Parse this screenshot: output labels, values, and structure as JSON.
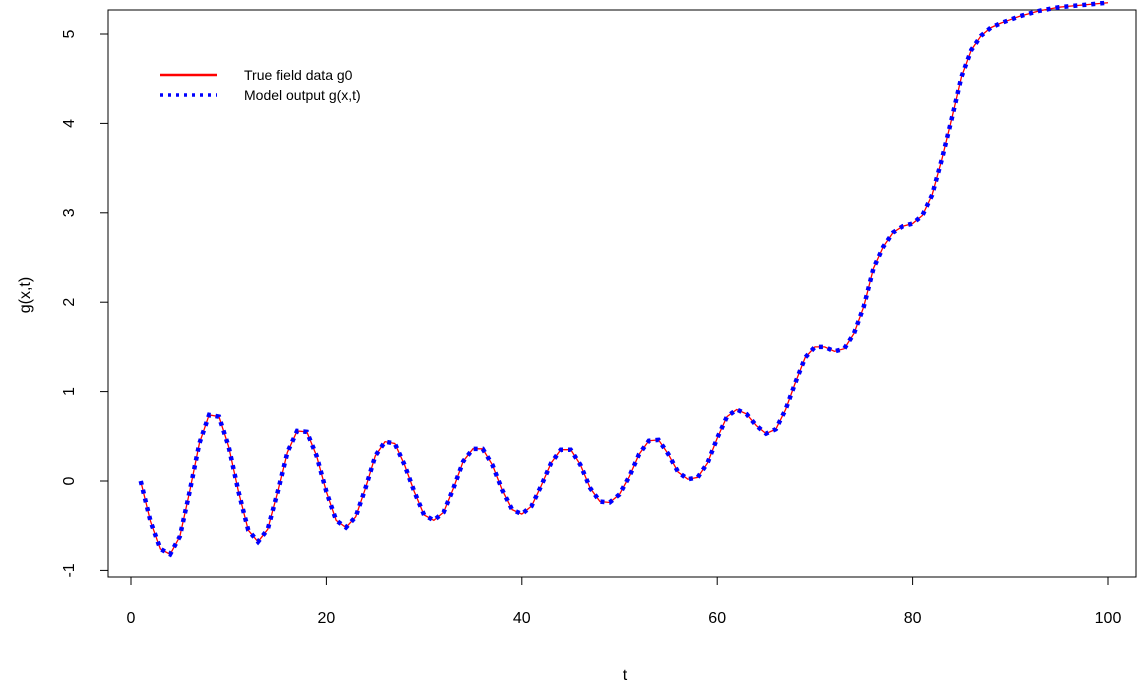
{
  "chart_data": {
    "type": "line",
    "title": "",
    "xlabel": "t",
    "ylabel": "g(x,t)",
    "xlim": [
      1,
      100
    ],
    "ylim": [
      -1,
      5
    ],
    "x_ticks": [
      0,
      20,
      40,
      60,
      80,
      100
    ],
    "y_ticks": [
      -1,
      0,
      1,
      2,
      3,
      4,
      5
    ],
    "legend_position": "top-left",
    "grid": false,
    "x": [
      1,
      2,
      3,
      4,
      5,
      6,
      7,
      8,
      9,
      10,
      11,
      12,
      13,
      14,
      15,
      16,
      17,
      18,
      19,
      20,
      21,
      22,
      23,
      24,
      25,
      26,
      27,
      28,
      29,
      30,
      31,
      32,
      33,
      34,
      35,
      36,
      37,
      38,
      39,
      40,
      41,
      42,
      43,
      44,
      45,
      46,
      47,
      48,
      49,
      50,
      51,
      52,
      53,
      54,
      55,
      56,
      57,
      58,
      59,
      60,
      61,
      62,
      63,
      64,
      65,
      66,
      67,
      68,
      69,
      70,
      71,
      72,
      73,
      74,
      75,
      76,
      77,
      78,
      79,
      80,
      81,
      82,
      83,
      84,
      85,
      86,
      87,
      88,
      89,
      90,
      91,
      92,
      93,
      94,
      95,
      96,
      97,
      98,
      99,
      100
    ],
    "series": [
      {
        "name": "True field data g0",
        "color": "#ff0000",
        "style": "solid",
        "values": [
          0.0,
          -0.45,
          -0.76,
          -0.82,
          -0.62,
          -0.12,
          0.42,
          0.74,
          0.72,
          0.38,
          -0.12,
          -0.55,
          -0.68,
          -0.54,
          -0.13,
          0.32,
          0.56,
          0.55,
          0.28,
          -0.12,
          -0.44,
          -0.52,
          -0.4,
          -0.08,
          0.28,
          0.44,
          0.42,
          0.18,
          -0.12,
          -0.38,
          -0.44,
          -0.35,
          -0.08,
          0.22,
          0.36,
          0.36,
          0.18,
          -0.1,
          -0.32,
          -0.37,
          -0.28,
          -0.05,
          0.2,
          0.35,
          0.35,
          0.18,
          -0.08,
          -0.23,
          -0.24,
          -0.15,
          0.05,
          0.3,
          0.45,
          0.46,
          0.3,
          0.1,
          0.02,
          0.04,
          0.2,
          0.48,
          0.72,
          0.8,
          0.75,
          0.62,
          0.53,
          0.58,
          0.8,
          1.1,
          1.38,
          1.5,
          1.5,
          1.45,
          1.48,
          1.65,
          1.95,
          2.38,
          2.62,
          2.78,
          2.85,
          2.88,
          2.97,
          3.2,
          3.6,
          4.05,
          4.52,
          4.82,
          4.98,
          5.07,
          5.12,
          5.16,
          5.2,
          5.23,
          5.26,
          5.28,
          5.3,
          5.31,
          5.32,
          5.33,
          5.34,
          5.35
        ]
      },
      {
        "name": "Model output g(x,t)",
        "color": "#0000ff",
        "style": "dotted",
        "values": [
          0.0,
          -0.45,
          -0.76,
          -0.82,
          -0.62,
          -0.12,
          0.42,
          0.74,
          0.72,
          0.38,
          -0.12,
          -0.55,
          -0.68,
          -0.54,
          -0.13,
          0.32,
          0.56,
          0.55,
          0.28,
          -0.12,
          -0.44,
          -0.52,
          -0.4,
          -0.08,
          0.28,
          0.44,
          0.42,
          0.18,
          -0.12,
          -0.38,
          -0.44,
          -0.35,
          -0.08,
          0.22,
          0.36,
          0.36,
          0.18,
          -0.1,
          -0.32,
          -0.37,
          -0.28,
          -0.05,
          0.2,
          0.35,
          0.35,
          0.18,
          -0.08,
          -0.23,
          -0.24,
          -0.15,
          0.05,
          0.3,
          0.45,
          0.46,
          0.3,
          0.1,
          0.02,
          0.04,
          0.2,
          0.48,
          0.72,
          0.8,
          0.75,
          0.62,
          0.53,
          0.58,
          0.8,
          1.1,
          1.38,
          1.5,
          1.5,
          1.45,
          1.48,
          1.65,
          1.95,
          2.38,
          2.62,
          2.78,
          2.85,
          2.88,
          2.97,
          3.2,
          3.6,
          4.05,
          4.52,
          4.82,
          4.98,
          5.07,
          5.12,
          5.16,
          5.2,
          5.23,
          5.26,
          5.28,
          5.3,
          5.31,
          5.32,
          5.33,
          5.34,
          5.35
        ]
      }
    ]
  }
}
